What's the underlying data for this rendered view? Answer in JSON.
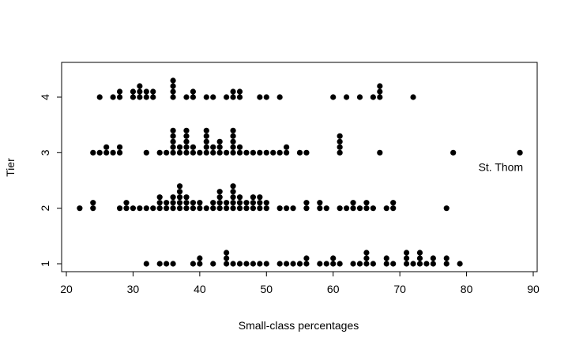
{
  "chart_data": {
    "type": "scatter",
    "title": "",
    "xlabel": "Small-class percentages",
    "ylabel": "Tier",
    "xlim": [
      20,
      90
    ],
    "ylim": [
      1,
      4
    ],
    "x_ticks": [
      "20",
      "30",
      "40",
      "50",
      "60",
      "70",
      "80",
      "90"
    ],
    "y_ticks": [
      "1",
      "2",
      "3",
      "4"
    ],
    "grid": false,
    "legend": "none",
    "stacking": "stripchart-stack",
    "point_color": "#000000",
    "annotations": [
      {
        "text": "St. Thom",
        "x": 88,
        "y": 3
      }
    ],
    "series": [
      {
        "y": 1,
        "x": [
          32,
          34,
          35,
          36,
          39,
          40,
          40,
          42,
          44,
          44,
          44,
          45,
          46,
          47,
          48,
          49,
          50,
          52,
          53,
          54,
          55,
          56,
          56,
          58,
          59,
          60,
          60,
          61,
          63,
          64,
          65,
          65,
          65,
          66,
          68,
          68,
          69,
          71,
          71,
          71,
          72,
          73,
          73,
          73,
          74,
          75,
          75,
          77,
          77,
          79
        ]
      },
      {
        "y": 2,
        "x": [
          22,
          24,
          24,
          28,
          29,
          29,
          30,
          31,
          32,
          33,
          34,
          34,
          34,
          35,
          35,
          36,
          36,
          36,
          37,
          37,
          37,
          37,
          37,
          38,
          38,
          38,
          39,
          39,
          40,
          40,
          41,
          42,
          42,
          43,
          43,
          43,
          43,
          44,
          44,
          45,
          45,
          45,
          45,
          45,
          46,
          46,
          46,
          47,
          47,
          48,
          48,
          48,
          49,
          49,
          49,
          50,
          50,
          52,
          53,
          54,
          56,
          56,
          58,
          58,
          59,
          61,
          62,
          63,
          63,
          64,
          65,
          65,
          66,
          68,
          69,
          69,
          77
        ]
      },
      {
        "y": 3,
        "x": [
          24,
          25,
          26,
          26,
          27,
          28,
          28,
          32,
          34,
          35,
          36,
          36,
          36,
          36,
          36,
          37,
          37,
          38,
          38,
          38,
          38,
          38,
          39,
          39,
          40,
          41,
          41,
          41,
          41,
          41,
          42,
          42,
          43,
          43,
          43,
          44,
          45,
          45,
          45,
          45,
          45,
          46,
          46,
          47,
          48,
          49,
          50,
          51,
          52,
          53,
          53,
          55,
          56,
          61,
          61,
          61,
          61,
          67,
          78,
          88
        ]
      },
      {
        "y": 4,
        "x": [
          25,
          27,
          28,
          28,
          30,
          30,
          31,
          31,
          31,
          32,
          32,
          33,
          33,
          36,
          36,
          36,
          36,
          38,
          39,
          39,
          41,
          42,
          44,
          45,
          45,
          46,
          46,
          49,
          50,
          52,
          60,
          62,
          64,
          66,
          67,
          67,
          67,
          72
        ]
      }
    ]
  }
}
